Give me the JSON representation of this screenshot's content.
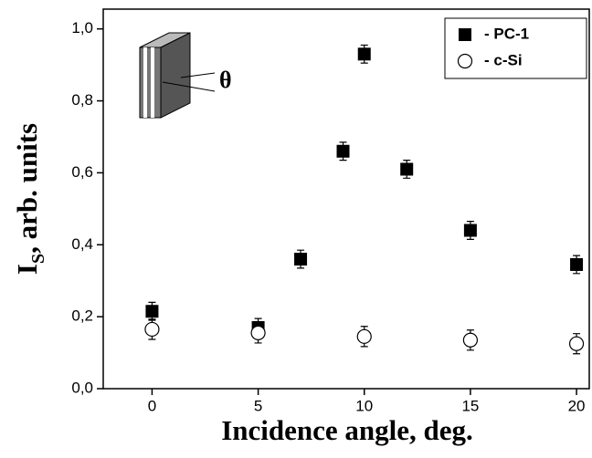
{
  "chart_data": {
    "type": "scatter",
    "xlabel": "Incidence angle, deg.",
    "ylabel_parts": [
      "I",
      "S",
      ", arb. units"
    ],
    "annotation": "θ",
    "xlim": [
      -2.3,
      20.6
    ],
    "ylim": [
      0,
      1.055
    ],
    "xticks": [
      0,
      5,
      10,
      15,
      20
    ],
    "yticks": [
      {
        "value": 0,
        "label": "0,0"
      },
      {
        "value": 0.2,
        "label": "0,2"
      },
      {
        "value": 0.4,
        "label": "0,4"
      },
      {
        "value": 0.6,
        "label": "0,6"
      },
      {
        "value": 0.8,
        "label": "0,8"
      },
      {
        "value": 1.0,
        "label": "1,0"
      }
    ],
    "legend": "top-right",
    "series": [
      {
        "name": "- PC-1",
        "color": "#000000",
        "marker": "filled-square",
        "x": [
          0,
          5,
          7,
          9,
          10,
          12,
          15,
          20
        ],
        "values": [
          0.215,
          0.17,
          0.36,
          0.66,
          0.93,
          0.61,
          0.44,
          0.345
        ],
        "errors": [
          0.025,
          0.025,
          0.025,
          0.025,
          0.025,
          0.025,
          0.025,
          0.025
        ]
      },
      {
        "name": "- c-Si",
        "color": "#000000",
        "marker": "open-circle",
        "x": [
          0,
          5,
          10,
          15,
          20
        ],
        "values": [
          0.165,
          0.155,
          0.145,
          0.135,
          0.125
        ],
        "errors": [
          0.028,
          0.028,
          0.028,
          0.028,
          0.028
        ]
      }
    ]
  }
}
